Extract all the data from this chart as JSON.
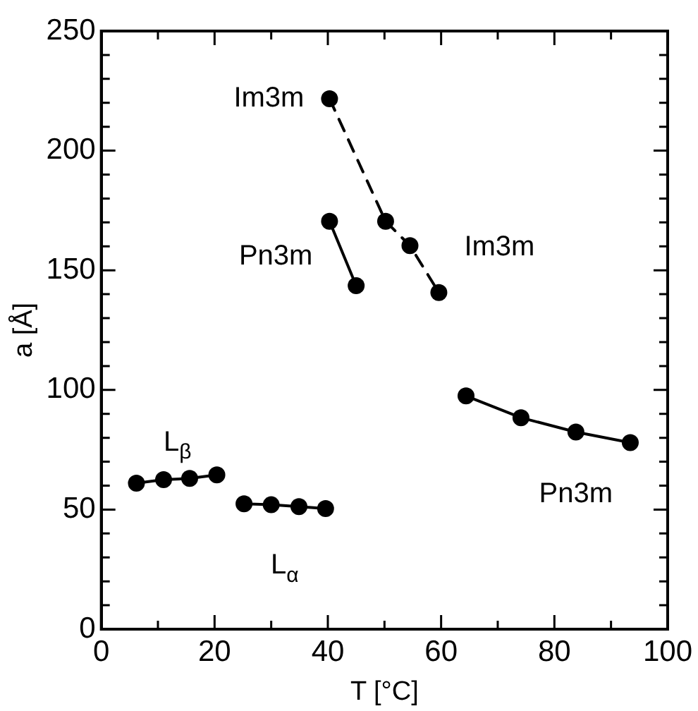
{
  "chart_data": {
    "type": "line",
    "xlabel": "T [°C]",
    "ylabel": "a [Å]",
    "xlim": [
      0,
      100
    ],
    "ylim": [
      0,
      250
    ],
    "xticks": [
      0,
      {
        "value": 10,
        "label": null
      },
      20,
      {
        "value": 30,
        "label": null
      },
      40,
      {
        "value": 50,
        "label": null
      },
      60,
      {
        "value": 70,
        "label": null
      },
      80,
      {
        "value": 90,
        "label": null
      },
      100
    ],
    "yticks": [
      0,
      {
        "value": 10,
        "label": null
      },
      {
        "value": 20,
        "label": null
      },
      {
        "value": 30,
        "label": null
      },
      {
        "value": 40,
        "label": null
      },
      50,
      {
        "value": 60,
        "label": null
      },
      {
        "value": 70,
        "label": null
      },
      {
        "value": 80,
        "label": null
      },
      {
        "value": 90,
        "label": null
      },
      100,
      {
        "value": 110,
        "label": null
      },
      {
        "value": 120,
        "label": null
      },
      {
        "value": 130,
        "label": null
      },
      {
        "value": 140,
        "label": null
      },
      150,
      {
        "value": 160,
        "label": null
      },
      {
        "value": 170,
        "label": null
      },
      {
        "value": 180,
        "label": null
      },
      {
        "value": 190,
        "label": null
      },
      200,
      {
        "value": 210,
        "label": null
      },
      {
        "value": 220,
        "label": null
      },
      {
        "value": 230,
        "label": null
      },
      {
        "value": 240,
        "label": null
      },
      250
    ],
    "grid": false,
    "marker": "circle",
    "series": [
      {
        "name": "L$_{β}$",
        "color": "#000000",
        "line_style": "solid",
        "x": [
          6.2,
          11,
          15.6,
          20.4
        ],
        "values": [
          61,
          62.5,
          63,
          64.5
        ]
      },
      {
        "name": "L$_{α}$",
        "color": "#000000",
        "line_style": "solid",
        "x": [
          25.2,
          30,
          34.9,
          39.6
        ],
        "values": [
          52.4,
          52,
          51.2,
          50.4
        ]
      },
      {
        "name": "Pn3m",
        "color": "#000000",
        "line_style": "solid",
        "x": [
          64.4,
          74.1,
          83.8,
          93.4
        ],
        "values": [
          97.5,
          88.4,
          82.4,
          78
        ]
      },
      {
        "name": "Pn3m",
        "color": "#000000",
        "line_style": "solid",
        "x": [
          40.3,
          45
        ],
        "values": [
          170.5,
          143.6
        ]
      },
      {
        "name": "Im3m",
        "color": "#000000",
        "line_style": "dashed",
        "x": [
          40.3,
          50.2,
          54.5,
          59.6
        ],
        "values": [
          221.7,
          170.5,
          160.3,
          140.7
        ]
      }
    ],
    "annotations": [
      {
        "text": "Im3m",
        "x": 59.6,
        "y": 140.7
      }
    ]
  }
}
